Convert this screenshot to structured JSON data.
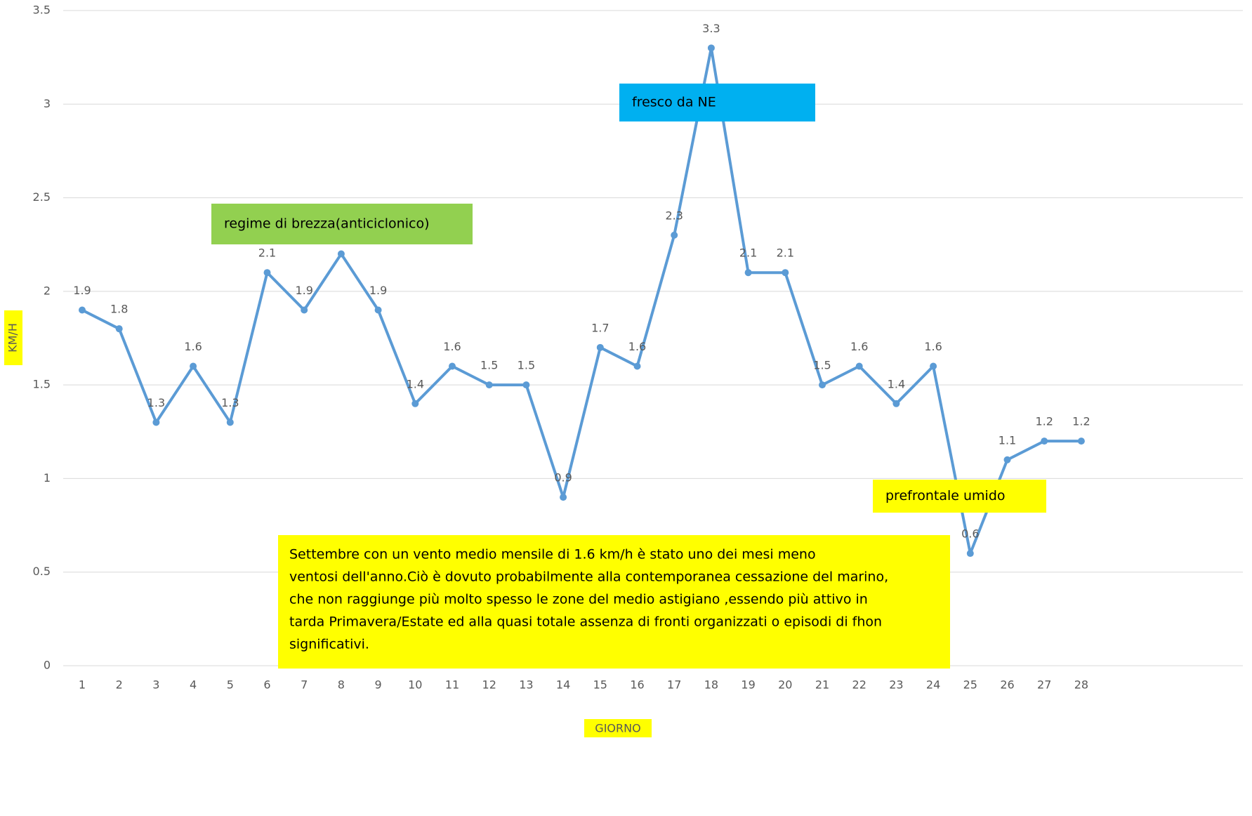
{
  "chart_data": {
    "type": "line",
    "x_label": "GIORNO",
    "y_label": "KM/H",
    "categories": [
      "1",
      "2",
      "3",
      "4",
      "5",
      "6",
      "7",
      "8",
      "9",
      "10",
      "11",
      "12",
      "13",
      "14",
      "15",
      "16",
      "17",
      "18",
      "19",
      "20",
      "21",
      "22",
      "23",
      "24",
      "25",
      "26",
      "27",
      "28"
    ],
    "series": [
      {
        "color": "#5b9bd5",
        "values": [
          1.9,
          1.8,
          1.3,
          1.6,
          1.3,
          2.1,
          1.9,
          2.2,
          1.9,
          1.4,
          1.6,
          1.5,
          1.5,
          0.9,
          1.7,
          1.6,
          2.3,
          3.3,
          2.1,
          2.1,
          1.5,
          1.6,
          1.4,
          1.6,
          0.6,
          1.1,
          1.2,
          1.2
        ],
        "value_labels": [
          "1.9",
          "1.8",
          "1.3",
          "1.6",
          "1.3",
          "2.1",
          "1.9",
          null,
          "1.9",
          "1.4",
          "1.6",
          "1.5",
          "1.5",
          "0.9",
          "1.7",
          "1.6",
          "2.3",
          "3.3",
          "2.1",
          "2.1",
          "1.5",
          "1.6",
          "1.4",
          "1.6",
          "0.6",
          "1.1",
          "1.2",
          "1.2"
        ]
      }
    ],
    "ylim": [
      0,
      3.5
    ],
    "yticks": [
      0,
      0.5,
      1,
      1.5,
      2,
      2.5,
      3,
      3.5
    ],
    "grid": true,
    "annotations": [
      {
        "text": "regime di brezza(anticiclonico)",
        "color": "#92d050"
      },
      {
        "text": "fresco da NE",
        "color": "#00b0f0"
      },
      {
        "text": "prefrontale umido",
        "color": "#ffff00"
      },
      {
        "lines": [
          "Settembre con un vento medio mensile di 1.6 km/h è stato uno dei mesi meno",
          "ventosi dell'anno.Ciò è dovuto probabilmente alla contemporanea cessazione del marino,",
          "che non raggiunge più molto spesso le zone del medio astigiano ,essendo più attivo in",
          "tarda Primavera/Estate ed alla quasi totale assenza di fronti organizzati o episodi di fhon",
          "significativi."
        ],
        "color": "#ffff00"
      }
    ]
  }
}
